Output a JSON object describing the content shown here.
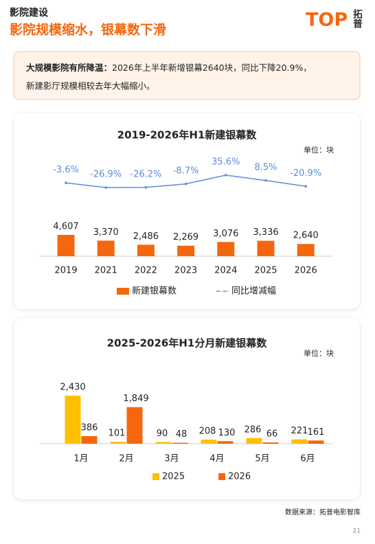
{
  "header": {
    "section": "影院建设",
    "title": "影院规模缩水，银幕数下滑",
    "logo": "TOP",
    "logo_cn": "拓普"
  },
  "callout": {
    "lead": "大规模影院有所降温：",
    "line1": "2026年上半年新增银幕2640块，同比下降20.9%，",
    "line2": "新建影厅规模相较去年大幅缩小。"
  },
  "chart_data": [
    {
      "type": "combo",
      "title": "2019-2026年H1新建银幕数",
      "unit": "单位：块",
      "categories": [
        "2019",
        "2021",
        "2022",
        "2023",
        "2024",
        "2025",
        "2026"
      ],
      "series": [
        {
          "name": "新建银幕数",
          "type": "bar",
          "color": "#f5670f",
          "values": [
            4607,
            3370,
            2486,
            2269,
            3076,
            3336,
            2640
          ],
          "value_labels": [
            "4,607",
            "3,370",
            "2,486",
            "2,269",
            "3,076",
            "3,336",
            "2,640"
          ]
        },
        {
          "name": "同比增减幅",
          "type": "line",
          "axis": "y2",
          "color": "#5b8bd9",
          "values": [
            -3.6,
            -26.9,
            -26.2,
            -8.7,
            35.6,
            8.5,
            -20.9
          ],
          "value_labels": [
            "-3.6%",
            "-26.9%",
            "-26.2%",
            "-8.7%",
            "35.6%",
            "8.5%",
            "-20.9%"
          ]
        }
      ]
    },
    {
      "type": "bar",
      "title": "2025-2026年H1分月新建银幕数",
      "unit": "单位：块",
      "categories": [
        "1月",
        "2月",
        "3月",
        "4月",
        "5月",
        "6月"
      ],
      "series": [
        {
          "name": "2025",
          "color": "#ffc000",
          "values": [
            2430,
            101,
            90,
            208,
            286,
            221
          ],
          "value_labels": [
            "2,430",
            "101",
            "90",
            "208",
            "286",
            "221"
          ]
        },
        {
          "name": "2026",
          "color": "#f5670f",
          "values": [
            386,
            1849,
            48,
            130,
            66,
            161
          ],
          "value_labels": [
            "386",
            "1,849",
            "48",
            "130",
            "66",
            "161"
          ]
        }
      ]
    }
  ],
  "footer": {
    "source": "数据来源：拓普电影智库",
    "page": "21"
  }
}
